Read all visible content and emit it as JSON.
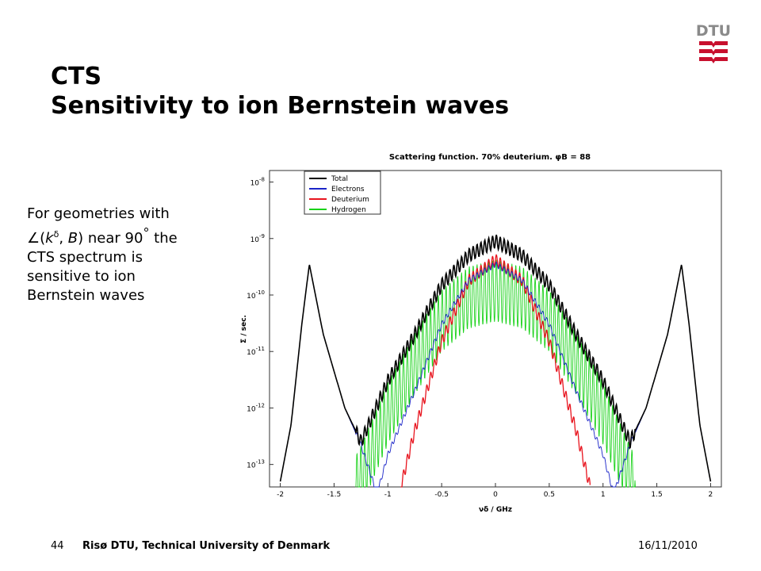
{
  "slide": {
    "title_line1": "CTS",
    "title_line2": "Sensitivity to ion Bernstein waves",
    "logo_text": "DTU",
    "body": {
      "line1": "For geometries with",
      "line2_angle_symbol": "∠",
      "line2_open": "(",
      "line2_k": "k",
      "line2_delta": "δ",
      "line2_sep": ", ",
      "line2_B": "B",
      "line2_rest": ") near 90",
      "line2_degree": "°",
      "line2_the": " the",
      "line3": "CTS spectrum is",
      "line4": "sensitive to ion",
      "line5": "Bernstein waves"
    },
    "footer": {
      "page_number": "44",
      "organization": "Risø DTU, Technical University of Denmark",
      "date": "16/11/2010"
    }
  },
  "chart_data": {
    "type": "line",
    "title": "Scattering function. 70% deuterium. φB = 88",
    "xlabel": "νδ / GHz",
    "ylabel": "Σ / sec.",
    "xlim": [
      -2.1,
      2.1
    ],
    "ylim": [
      4e-14,
      1.6e-08
    ],
    "yscale": "log",
    "x_ticks": [
      "-2",
      "-1.5",
      "-1",
      "-0.5",
      "0",
      "0.5",
      "1",
      "1.5",
      "2"
    ],
    "y_ticks": [
      "10-8",
      "10-9",
      "10-10",
      "10-11",
      "10-12",
      "10-13"
    ],
    "legend_position": "top-left",
    "series": [
      {
        "name": "Total",
        "color": "#000000",
        "x": [
          -2.0,
          -1.9,
          -1.8,
          -1.73,
          -1.6,
          -1.4,
          -1.25,
          -1.0,
          -0.75,
          -0.5,
          -0.25,
          0.0,
          0.25,
          0.5,
          0.75,
          1.0,
          1.25,
          1.4,
          1.6,
          1.73,
          1.8,
          1.9,
          2.0
        ],
        "y": [
          5e-14,
          5e-13,
          3e-11,
          3.5e-10,
          2e-11,
          1e-12,
          2.5e-13,
          3e-12,
          2e-11,
          1.5e-10,
          5e-10,
          9e-10,
          5e-10,
          1.5e-10,
          2e-11,
          3e-12,
          2.5e-13,
          1e-12,
          2e-11,
          3.5e-10,
          3e-11,
          5e-13,
          5e-14
        ]
      },
      {
        "name": "Electrons",
        "color": "#1a24c8",
        "x": [
          -2.0,
          -1.9,
          -1.8,
          -1.73,
          -1.6,
          -1.4,
          -1.25,
          -1.1,
          -1.0,
          -0.75,
          -0.5,
          -0.25,
          0.0,
          0.25,
          0.5,
          0.75,
          1.0,
          1.1,
          1.25,
          1.4,
          1.6,
          1.73,
          1.8,
          1.9,
          2.0
        ],
        "y": [
          5e-14,
          5e-13,
          3e-11,
          3.5e-10,
          2e-11,
          1e-12,
          2.2e-13,
          3e-14,
          1.5e-13,
          2e-12,
          3e-11,
          1.8e-10,
          3.5e-10,
          1.8e-10,
          3e-11,
          2e-12,
          1.5e-13,
          3e-14,
          2.2e-13,
          1e-12,
          2e-11,
          3.5e-10,
          3e-11,
          5e-13,
          5e-14
        ]
      },
      {
        "name": "Deuterium",
        "color": "#e8141e",
        "x": [
          -0.88,
          -0.75,
          -0.5,
          -0.25,
          0.0,
          0.25,
          0.5,
          0.75,
          0.88
        ],
        "y": [
          4e-14,
          4e-13,
          1.5e-11,
          1.8e-10,
          4.2e-10,
          1.8e-10,
          1.5e-11,
          4e-13,
          4e-14
        ]
      },
      {
        "name": "Hydrogen",
        "color": "#19d219",
        "x": [
          -1.3,
          -1.25,
          -1.0,
          -0.75,
          -0.5,
          -0.25,
          0.0,
          0.25,
          0.5,
          0.75,
          1.0,
          1.25,
          1.3
        ],
        "y": [
          4e-14,
          6e-14,
          8e-13,
          6e-12,
          3.5e-11,
          9e-11,
          1.2e-10,
          9e-11,
          3.5e-11,
          6e-12,
          8e-13,
          6e-14,
          4e-14
        ]
      }
    ]
  }
}
